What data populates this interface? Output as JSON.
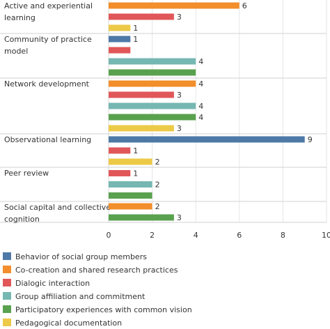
{
  "chart_data": {
    "type": "bar",
    "orientation": "horizontal",
    "xlim": [
      0,
      10
    ],
    "x_ticks": [
      0,
      2,
      4,
      6,
      8,
      10
    ],
    "grid": true,
    "legend_position": "bottom",
    "legend": [
      {
        "name": "Behavior of social group members",
        "color": "#4E79A7"
      },
      {
        "name": "Co-creation and shared research practices",
        "color": "#F28E2B"
      },
      {
        "name": "Dialogic interaction",
        "color": "#E15759"
      },
      {
        "name": "Group affiliation and commitment",
        "color": "#76B7B2"
      },
      {
        "name": "Participatory experiences with common vision",
        "color": "#59A14F"
      },
      {
        "name": "Pedagogical documentation",
        "color": "#EDC948"
      }
    ],
    "groups": [
      {
        "label": [
          "Active and experiential",
          "learning"
        ],
        "bars": [
          {
            "series": "Co-creation and shared research practices",
            "value": 6,
            "label": "6"
          },
          {
            "series": "Dialogic interaction",
            "value": 3,
            "label": "3"
          },
          {
            "series": "Pedagogical documentation",
            "value": 1,
            "label": "1"
          }
        ]
      },
      {
        "label": [
          "Community of practice",
          "model"
        ],
        "bars": [
          {
            "series": "Behavior of social group members",
            "value": 1,
            "label": "1"
          },
          {
            "series": "Dialogic interaction",
            "value": 1,
            "label": ""
          },
          {
            "series": "Group affiliation and commitment",
            "value": 4,
            "label": "4"
          },
          {
            "series": "Participatory experiences with common vision",
            "value": 4,
            "label": ""
          }
        ]
      },
      {
        "label": [
          "Network development"
        ],
        "bars": [
          {
            "series": "Co-creation and shared research practices",
            "value": 4,
            "label": "4"
          },
          {
            "series": "Dialogic interaction",
            "value": 3,
            "label": "3"
          },
          {
            "series": "Group affiliation and commitment",
            "value": 4,
            "label": "4"
          },
          {
            "series": "Participatory experiences with common vision",
            "value": 4,
            "label": "4"
          },
          {
            "series": "Pedagogical documentation",
            "value": 3,
            "label": "3"
          }
        ]
      },
      {
        "label": [
          "Observational learning"
        ],
        "bars": [
          {
            "series": "Behavior of social group members",
            "value": 9,
            "label": "9"
          },
          {
            "series": "Dialogic interaction",
            "value": 1,
            "label": "1"
          },
          {
            "series": "Pedagogical documentation",
            "value": 2,
            "label": "2"
          }
        ]
      },
      {
        "label": [
          "Peer review"
        ],
        "bars": [
          {
            "series": "Dialogic interaction",
            "value": 1,
            "label": "1"
          },
          {
            "series": "Group affiliation and commitment",
            "value": 2,
            "label": "2"
          },
          {
            "series": "Participatory experiences with common vision",
            "value": 2,
            "label": ""
          }
        ]
      },
      {
        "label": [
          "Social capital and collective",
          "cognition"
        ],
        "bars": [
          {
            "series": "Co-creation and shared research practices",
            "value": 2,
            "label": "2"
          },
          {
            "series": "Participatory experiences with common vision",
            "value": 3,
            "label": "3"
          }
        ]
      }
    ]
  }
}
